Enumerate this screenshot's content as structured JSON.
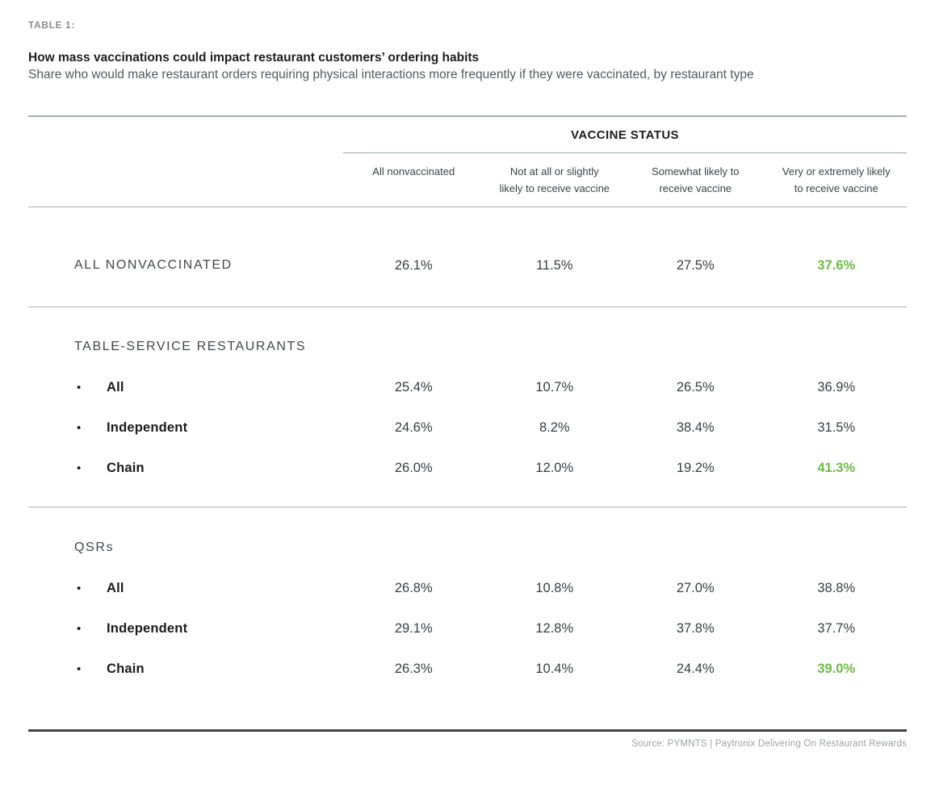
{
  "header": {
    "table_label": "TABLE 1:",
    "title": "How mass vaccinations could impact restaurant customers’ ordering habits",
    "subtitle": "Share who would make restaurant orders requiring physical interactions more frequently if they were vaccinated, by restaurant type"
  },
  "chart_data": {
    "type": "table",
    "title": "How mass vaccinations could impact restaurant customers’ ordering habits",
    "subtitle": "Share who would make restaurant orders requiring physical interactions more frequently if they were vaccinated, by restaurant type",
    "column_group_header": "VACCINE STATUS",
    "columns": [
      "All nonvaccinated",
      "Not at all or slightly\nlikely to receive vaccine",
      "Somewhat likely to\nreceive vaccine",
      "Very or extremely likely\nto receive vaccine"
    ],
    "sections": [
      {
        "heading": "",
        "rows": [
          {
            "label": "ALL NONVACCINATED",
            "bullet": false,
            "values": [
              "26.1%",
              "11.5%",
              "27.5%",
              "37.6%"
            ],
            "highlight_index": 3
          }
        ]
      },
      {
        "heading": "TABLE-SERVICE RESTAURANTS",
        "rows": [
          {
            "label": "All",
            "bullet": true,
            "values": [
              "25.4%",
              "10.7%",
              "26.5%",
              "36.9%"
            ],
            "highlight_index": -1
          },
          {
            "label": "Independent",
            "bullet": true,
            "values": [
              "24.6%",
              "8.2%",
              "38.4%",
              "31.5%"
            ],
            "highlight_index": -1
          },
          {
            "label": "Chain",
            "bullet": true,
            "values": [
              "26.0%",
              "12.0%",
              "19.2%",
              "41.3%"
            ],
            "highlight_index": 3
          }
        ]
      },
      {
        "heading": "QSRs",
        "rows": [
          {
            "label": "All",
            "bullet": true,
            "values": [
              "26.8%",
              "10.8%",
              "27.0%",
              "38.8%"
            ],
            "highlight_index": -1
          },
          {
            "label": "Independent",
            "bullet": true,
            "values": [
              "29.1%",
              "12.8%",
              "37.8%",
              "37.7%"
            ],
            "highlight_index": -1
          },
          {
            "label": "Chain",
            "bullet": true,
            "values": [
              "26.3%",
              "10.4%",
              "24.4%",
              "39.0%"
            ],
            "highlight_index": 3
          }
        ]
      }
    ]
  },
  "footer": {
    "source": "Source: PYMNTS | Paytronix Delivering On Restaurant Rewards"
  },
  "colors": {
    "highlight_green": "#6CBB45"
  },
  "icons": {
    "bullet": "•"
  }
}
